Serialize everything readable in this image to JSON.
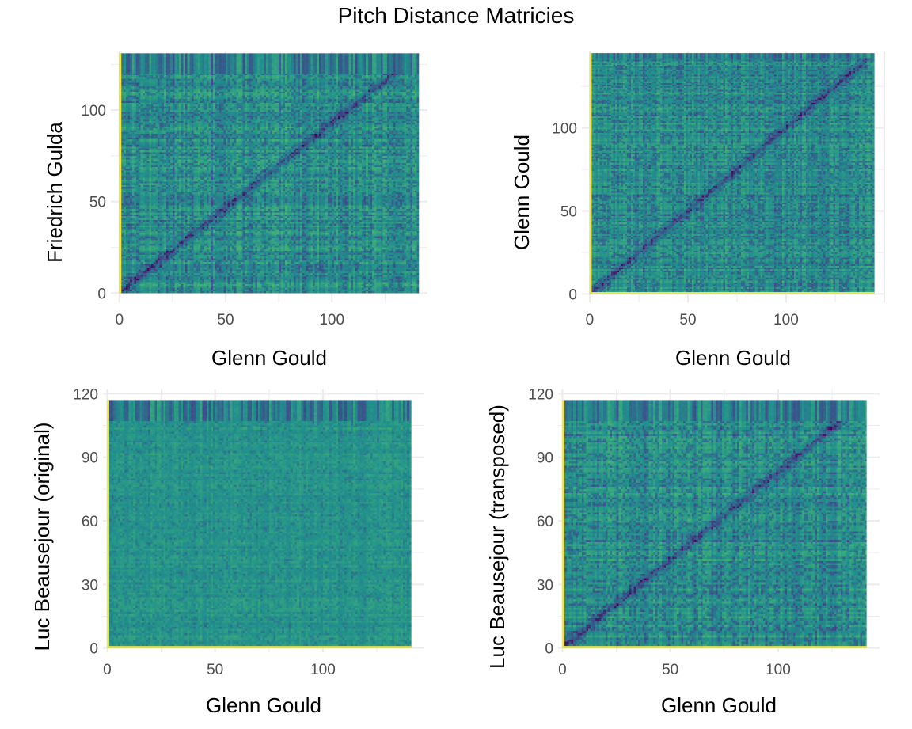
{
  "title": "Pitch Distance Matricies",
  "chart_data": [
    {
      "type": "heatmap",
      "title": "",
      "xlabel": "Glenn Gould",
      "ylabel": "Friedrich Gulda",
      "x_max": 141,
      "y_max": 131,
      "xlim": [
        -4,
        145
      ],
      "ylim": [
        -5,
        132
      ],
      "x_ticks": [
        0,
        50,
        100
      ],
      "x_tick_labels": [
        "0",
        "50",
        "100"
      ],
      "y_ticks": [
        0,
        50,
        100
      ],
      "y_tick_labels": [
        "0",
        "50",
        "100"
      ],
      "diagonal": "ascending",
      "top_band_rows": 11,
      "yellow_edges": [
        "left"
      ],
      "texture": "strong",
      "colormap": [
        "#440154",
        "#3b528b",
        "#21908d",
        "#5dc963",
        "#fde725"
      ],
      "grid": true
    },
    {
      "type": "heatmap",
      "title": "",
      "xlabel": "Glenn Gould",
      "ylabel": "Glenn Gould",
      "x_max": 145,
      "y_max": 145,
      "xlim": [
        -4,
        150
      ],
      "ylim": [
        -5,
        146
      ],
      "x_ticks": [
        0,
        50,
        100
      ],
      "x_tick_labels": [
        "0",
        "50",
        "100"
      ],
      "y_ticks": [
        0,
        50,
        100
      ],
      "y_tick_labels": [
        "0",
        "50",
        "100"
      ],
      "diagonal": "ascending",
      "top_band_rows": 3,
      "yellow_edges": [
        "left",
        "bottom"
      ],
      "texture": "strong",
      "colormap": [
        "#440154",
        "#3b528b",
        "#21908d",
        "#5dc963",
        "#fde725"
      ],
      "grid": true
    },
    {
      "type": "heatmap",
      "title": "",
      "xlabel": "Glenn Gould",
      "ylabel": "Luc Beausejour (original)",
      "x_max": 141,
      "y_max": 117,
      "xlim": [
        -2,
        147
      ],
      "ylim": [
        -2,
        122
      ],
      "x_ticks": [
        0,
        50,
        100
      ],
      "x_tick_labels": [
        "0",
        "50",
        "100"
      ],
      "y_ticks": [
        0,
        30,
        60,
        90,
        120
      ],
      "y_tick_labels": [
        "0",
        "30",
        "60",
        "90",
        "120"
      ],
      "diagonal": "none",
      "top_band_rows": 10,
      "yellow_edges": [
        "left",
        "bottom"
      ],
      "texture": "weak",
      "colormap": [
        "#440154",
        "#3b528b",
        "#21908d",
        "#5dc963",
        "#fde725"
      ],
      "grid": true
    },
    {
      "type": "heatmap",
      "title": "",
      "xlabel": "Glenn Gould",
      "ylabel": "Luc Beausejour (transposed)",
      "x_max": 141,
      "y_max": 117,
      "xlim": [
        -2,
        147
      ],
      "ylim": [
        -2,
        122
      ],
      "x_ticks": [
        0,
        50,
        100
      ],
      "x_tick_labels": [
        "0",
        "50",
        "100"
      ],
      "y_ticks": [
        0,
        30,
        60,
        90,
        120
      ],
      "y_tick_labels": [
        "0",
        "30",
        "60",
        "90",
        "120"
      ],
      "diagonal": "ascending",
      "top_band_rows": 10,
      "yellow_edges": [
        "left",
        "bottom"
      ],
      "texture": "strong",
      "colormap": [
        "#440154",
        "#3b528b",
        "#21908d",
        "#5dc963",
        "#fde725"
      ],
      "grid": true
    }
  ]
}
